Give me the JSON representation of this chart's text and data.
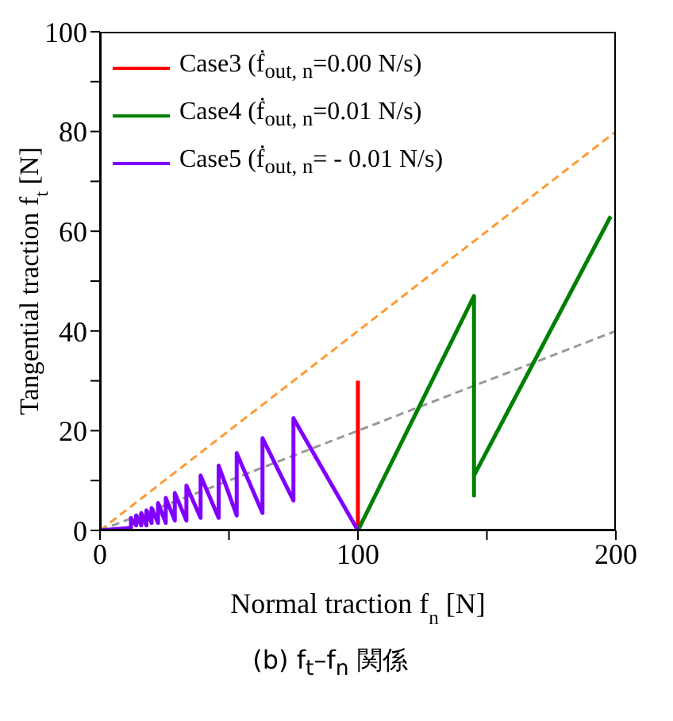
{
  "chart_data": {
    "type": "line",
    "title": "(b) f$_{t}$–f$_{n}$ 関係",
    "xlabel": "Normal traction f$_{n}$ [N]",
    "ylabel": "Tangential traction f$_{t}$ [N]",
    "xlim": [
      0,
      200
    ],
    "xticks": [
      0,
      {
        "value": 50,
        "label": null
      },
      100,
      {
        "value": 150,
        "label": null
      },
      200
    ],
    "ylim": [
      0,
      100
    ],
    "yticks": [
      0,
      {
        "value": 10,
        "label": null
      },
      20,
      {
        "value": 30,
        "label": null
      },
      40,
      {
        "value": 50,
        "label": null
      },
      60,
      {
        "value": 70,
        "label": null
      },
      80,
      {
        "value": 90,
        "label": null
      },
      100
    ],
    "legend": "top left",
    "marker": "none",
    "series": [
      {
        "color": "#ff9933",
        "line_style": "dashed",
        "x": [
          0,
          200
        ],
        "values": [
          0,
          80
        ]
      },
      {
        "color": "#999999",
        "line_style": "dashed",
        "x": [
          0,
          200
        ],
        "values": [
          0,
          40
        ]
      },
      {
        "name": "Case3 (ḟ$_{out, n}$=0.00 N/s)",
        "color": "#ff0000",
        "line_style": "solid",
        "x": [
          100,
          100
        ],
        "values": [
          0,
          30
        ]
      },
      {
        "name": "Case4 (ḟ$_{out, n}$=0.01 N/s)",
        "color": "#008000",
        "line_style": "solid",
        "x": [
          100,
          145,
          145,
          145,
          198
        ],
        "values": [
          0,
          47,
          7,
          11,
          63
        ]
      },
      {
        "name": "Case5 (ḟ$_{out, n}$= - 0.01 N/s)",
        "color": "#8000ff",
        "line_style": "solid",
        "x": [
          100,
          75,
          75,
          63,
          63,
          53,
          53,
          46,
          46,
          39,
          39,
          33.5,
          33.5,
          29,
          29,
          25.5,
          25.5,
          22.5,
          22.5,
          20,
          20,
          18,
          18,
          16,
          16,
          14,
          14,
          12,
          12,
          0
        ],
        "values": [
          0,
          22.5,
          6,
          18.5,
          3.5,
          15.5,
          3,
          13,
          2.5,
          11,
          2.5,
          9,
          2,
          7.5,
          2,
          6.5,
          1.5,
          5.5,
          1.5,
          4.5,
          1.5,
          4,
          1,
          3.5,
          1,
          3,
          1,
          2.5,
          0.5,
          0
        ]
      }
    ]
  }
}
